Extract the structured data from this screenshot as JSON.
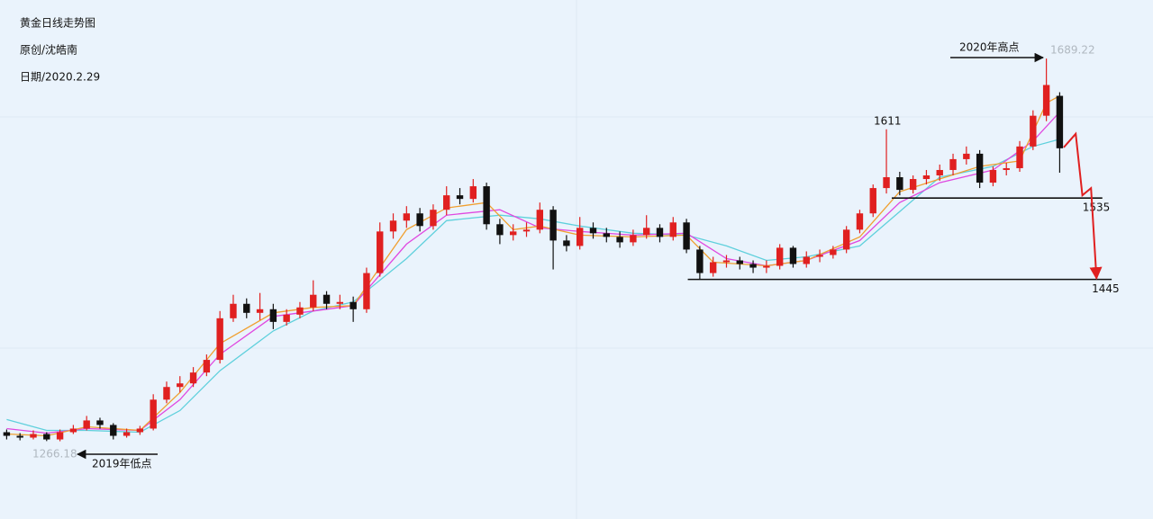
{
  "chart_data": {
    "type": "candlestick",
    "title": "黄金日线走势图",
    "author": "原创/沈皓南",
    "date": "日期/2020.2.29",
    "xlim": [
      -0.5,
      86
    ],
    "ylim": [
      1180,
      1754
    ],
    "up_color": "#e02020",
    "down_color": "#111111",
    "candles": [
      [
        1276,
        1279,
        1268,
        1272
      ],
      [
        1272,
        1275,
        1267,
        1270
      ],
      [
        1270,
        1278,
        1268,
        1274
      ],
      [
        1274,
        1276,
        1266.18,
        1268
      ],
      [
        1268,
        1279,
        1266,
        1276
      ],
      [
        1276,
        1284,
        1274,
        1280
      ],
      [
        1280,
        1294,
        1278,
        1289
      ],
      [
        1289,
        1292,
        1280,
        1284
      ],
      [
        1284,
        1286,
        1268,
        1272
      ],
      [
        1272,
        1280,
        1270,
        1276
      ],
      [
        1276,
        1283,
        1273,
        1280
      ],
      [
        1280,
        1318,
        1278,
        1312
      ],
      [
        1312,
        1332,
        1308,
        1326
      ],
      [
        1326,
        1338,
        1320,
        1330
      ],
      [
        1330,
        1348,
        1326,
        1342
      ],
      [
        1342,
        1362,
        1338,
        1356
      ],
      [
        1356,
        1410,
        1352,
        1402
      ],
      [
        1402,
        1428,
        1398,
        1418
      ],
      [
        1418,
        1424,
        1402,
        1408
      ],
      [
        1408,
        1430,
        1400,
        1412
      ],
      [
        1412,
        1418,
        1390,
        1398
      ],
      [
        1398,
        1412,
        1394,
        1406
      ],
      [
        1406,
        1420,
        1402,
        1414
      ],
      [
        1414,
        1444,
        1410,
        1428
      ],
      [
        1428,
        1432,
        1412,
        1418
      ],
      [
        1418,
        1428,
        1412,
        1420
      ],
      [
        1420,
        1426,
        1398,
        1412
      ],
      [
        1412,
        1458,
        1408,
        1452
      ],
      [
        1452,
        1508,
        1448,
        1498
      ],
      [
        1498,
        1518,
        1490,
        1510
      ],
      [
        1510,
        1526,
        1502,
        1518
      ],
      [
        1518,
        1524,
        1498,
        1504
      ],
      [
        1504,
        1528,
        1500,
        1522
      ],
      [
        1522,
        1548,
        1516,
        1538
      ],
      [
        1538,
        1546,
        1528,
        1534
      ],
      [
        1534,
        1556,
        1530,
        1548
      ],
      [
        1548,
        1552,
        1500,
        1506
      ],
      [
        1506,
        1512,
        1484,
        1494
      ],
      [
        1494,
        1506,
        1488,
        1498
      ],
      [
        1498,
        1508,
        1492,
        1500
      ],
      [
        1500,
        1530,
        1496,
        1522
      ],
      [
        1522,
        1526,
        1456,
        1488
      ],
      [
        1488,
        1494,
        1476,
        1482
      ],
      [
        1482,
        1514,
        1478,
        1502
      ],
      [
        1502,
        1508,
        1490,
        1496
      ],
      [
        1496,
        1502,
        1486,
        1492
      ],
      [
        1492,
        1498,
        1480,
        1486
      ],
      [
        1486,
        1500,
        1482,
        1494
      ],
      [
        1494,
        1516,
        1490,
        1502
      ],
      [
        1502,
        1506,
        1486,
        1492
      ],
      [
        1492,
        1514,
        1488,
        1508
      ],
      [
        1508,
        1512,
        1474,
        1478
      ],
      [
        1478,
        1482,
        1445,
        1452
      ],
      [
        1452,
        1470,
        1448,
        1464
      ],
      [
        1464,
        1472,
        1458,
        1466
      ],
      [
        1466,
        1470,
        1456,
        1462
      ],
      [
        1462,
        1466,
        1452,
        1458
      ],
      [
        1458,
        1466,
        1452,
        1460
      ],
      [
        1460,
        1484,
        1456,
        1480
      ],
      [
        1480,
        1482,
        1458,
        1462
      ],
      [
        1462,
        1476,
        1458,
        1470
      ],
      [
        1470,
        1478,
        1464,
        1472
      ],
      [
        1472,
        1482,
        1468,
        1478
      ],
      [
        1478,
        1504,
        1474,
        1500
      ],
      [
        1500,
        1522,
        1496,
        1518
      ],
      [
        1518,
        1550,
        1514,
        1546
      ],
      [
        1546,
        1611,
        1540,
        1558
      ],
      [
        1558,
        1564,
        1538,
        1544
      ],
      [
        1544,
        1560,
        1540,
        1556
      ],
      [
        1556,
        1566,
        1550,
        1560
      ],
      [
        1560,
        1572,
        1554,
        1566
      ],
      [
        1566,
        1584,
        1560,
        1578
      ],
      [
        1578,
        1592,
        1572,
        1584
      ],
      [
        1584,
        1588,
        1546,
        1552
      ],
      [
        1552,
        1570,
        1548,
        1566
      ],
      [
        1566,
        1574,
        1560,
        1568
      ],
      [
        1568,
        1598,
        1564,
        1592
      ],
      [
        1592,
        1632,
        1588,
        1626
      ],
      [
        1626,
        1689.22,
        1620,
        1660
      ],
      [
        1648,
        1652,
        1563,
        1590
      ]
    ],
    "lines": [
      {
        "color": "#5fd0dc",
        "x": [
          0,
          3,
          6,
          10,
          13,
          16,
          20,
          23,
          26,
          30,
          33,
          37,
          40,
          43,
          47,
          51,
          54,
          57,
          60,
          64,
          67,
          70,
          74,
          77,
          79
        ],
        "values": [
          1290,
          1278,
          1278,
          1276,
          1300,
          1344,
          1388,
          1410,
          1420,
          1468,
          1510,
          1516,
          1512,
          1504,
          1496,
          1494,
          1482,
          1466,
          1470,
          1482,
          1520,
          1558,
          1570,
          1592,
          1600
        ]
      },
      {
        "color": "#e048e0",
        "x": [
          0,
          3,
          6,
          10,
          13,
          16,
          20,
          23,
          26,
          30,
          33,
          37,
          40,
          43,
          47,
          51,
          54,
          57,
          60,
          64,
          67,
          70,
          74,
          77,
          79
        ],
        "values": [
          1280,
          1275,
          1280,
          1278,
          1312,
          1362,
          1404,
          1410,
          1416,
          1484,
          1516,
          1522,
          1502,
          1498,
          1494,
          1496,
          1468,
          1460,
          1466,
          1488,
          1530,
          1552,
          1566,
          1598,
          1630
        ]
      },
      {
        "color": "#f0a030",
        "x": [
          0,
          3,
          6,
          10,
          13,
          16,
          20,
          23,
          26,
          30,
          33,
          36,
          38,
          40,
          43,
          47,
          51,
          53,
          57,
          60,
          64,
          67,
          70,
          73,
          76,
          78,
          79
        ],
        "values": [
          1274,
          1272,
          1282,
          1278,
          1320,
          1374,
          1408,
          1414,
          1416,
          1500,
          1524,
          1530,
          1500,
          1504,
          1494,
          1492,
          1494,
          1464,
          1460,
          1466,
          1492,
          1542,
          1556,
          1570,
          1576,
          1640,
          1648
        ]
      }
    ],
    "forecast": {
      "color": "#e02020",
      "x": [
        79.3,
        80.2,
        80.7,
        81.35,
        81.76
      ],
      "values": [
        1591,
        1606,
        1538,
        1546,
        1446
      ]
    },
    "levels": [
      {
        "value": 1535,
        "x": [
          66.4,
          82.2
        ]
      },
      {
        "value": 1445,
        "x": [
          51.1,
          82.9
        ]
      }
    ],
    "annotations": [
      {
        "text": "2020年高点"
      },
      {
        "text": "2019年低点"
      }
    ]
  }
}
